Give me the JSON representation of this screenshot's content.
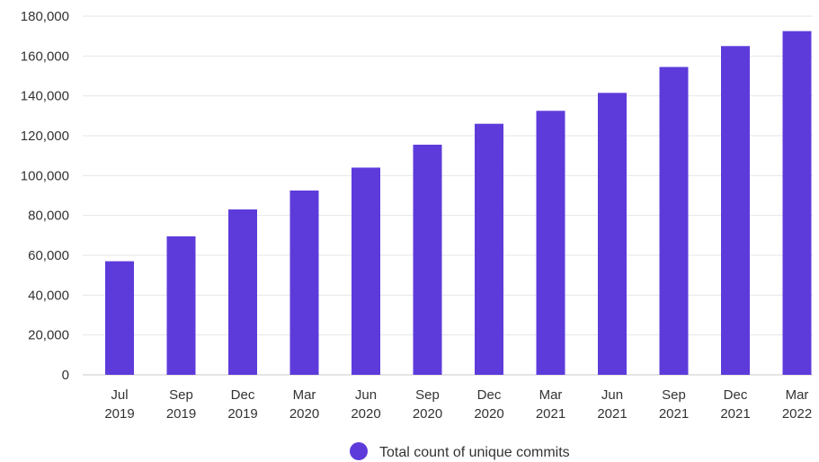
{
  "chart_data": {
    "type": "bar",
    "categories": [
      [
        "Jul",
        "2019"
      ],
      [
        "Sep",
        "2019"
      ],
      [
        "Dec",
        "2019"
      ],
      [
        "Mar",
        "2020"
      ],
      [
        "Jun",
        "2020"
      ],
      [
        "Sep",
        "2020"
      ],
      [
        "Dec",
        "2020"
      ],
      [
        "Mar",
        "2021"
      ],
      [
        "Jun",
        "2021"
      ],
      [
        "Sep",
        "2021"
      ],
      [
        "Dec",
        "2021"
      ],
      [
        "Mar",
        "2022"
      ]
    ],
    "series": [
      {
        "name": "Total count of unique commits",
        "color": "#5d3bdb",
        "values": [
          57000,
          69500,
          83000,
          92500,
          104000,
          115500,
          126000,
          132500,
          141500,
          154500,
          165000,
          172500
        ]
      }
    ],
    "y_ticks": [
      "0",
      "20,000",
      "40,000",
      "60,000",
      "80,000",
      "100,000",
      "120,000",
      "140,000",
      "160,000",
      "180,000"
    ],
    "ylim": [
      0,
      180000
    ],
    "grid": true,
    "legend_position": "bottom-center"
  }
}
